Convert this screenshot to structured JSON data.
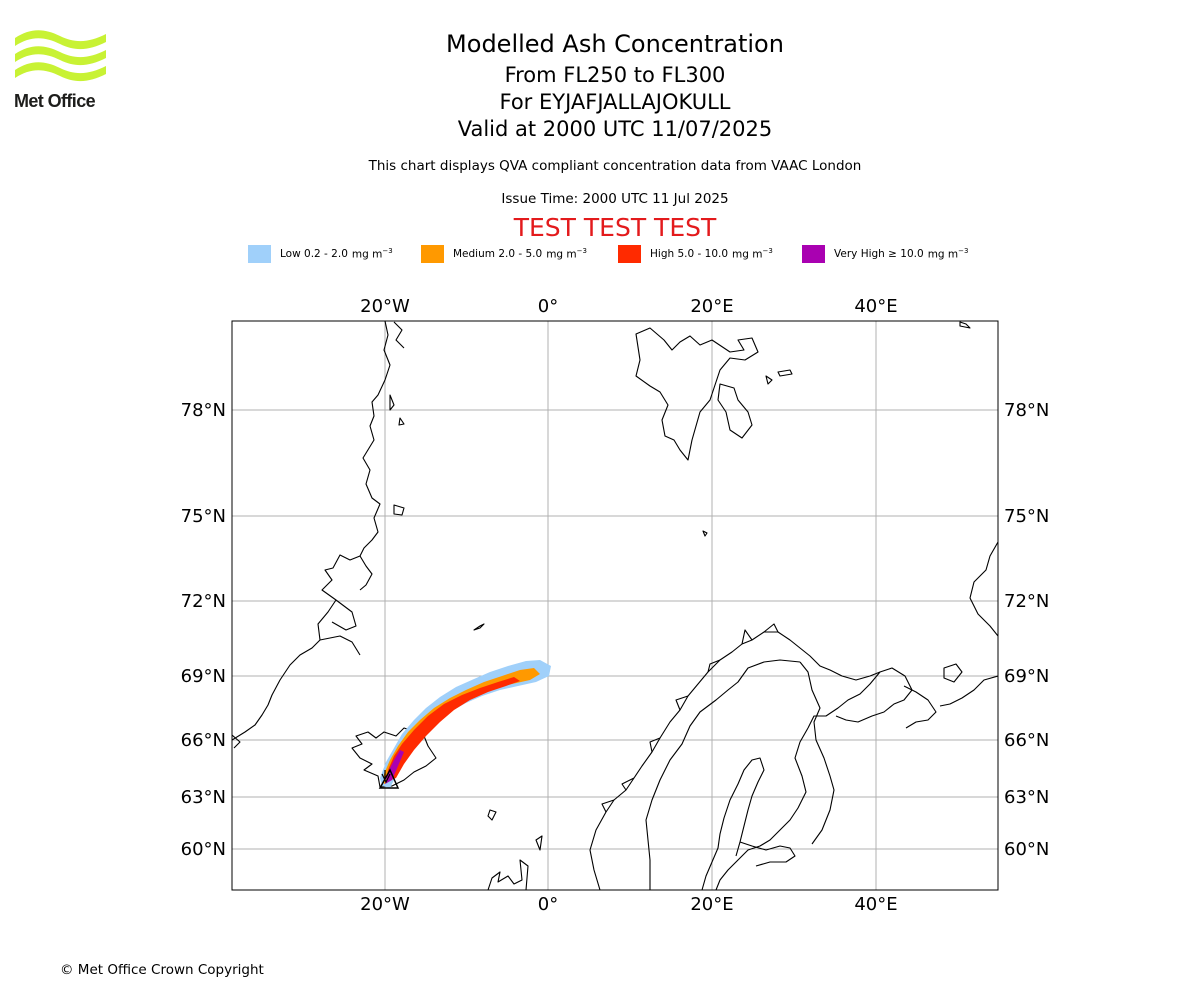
{
  "logo": {
    "text": "Met Office"
  },
  "header": {
    "title": "Modelled Ash Concentration",
    "levels": "From FL250 to FL300",
    "volcano": "For EYJAFJALLAJOKULL",
    "valid": "Valid at 2000 UTC 11/07/2025",
    "subtitle": "This chart displays QVA compliant concentration data from VAAC London",
    "issue_time": "Issue Time: 2000 UTC 11 Jul 2025",
    "test_banner": "TEST TEST TEST"
  },
  "legend": [
    {
      "label": "Low 0.2 - 2.0",
      "unit": "mg m",
      "exp": "−3",
      "color": "#a0d0fa"
    },
    {
      "label": "Medium 2.0 - 5.0",
      "unit": "mg m",
      "exp": "−3",
      "color": "#ff9900"
    },
    {
      "label": "High 5.0 - 10.0",
      "unit": "mg m",
      "exp": "−3",
      "color": "#ff2a00"
    },
    {
      "label": "Very High  ≥  10.0",
      "unit": "mg m",
      "exp": "−3",
      "color": "#a901b1"
    }
  ],
  "map": {
    "lon_ticks_top": [
      "20°W",
      "0°",
      "20°E",
      "40°E"
    ],
    "lon_ticks_bottom": [
      "20°W",
      "0°",
      "20°E",
      "40°E"
    ],
    "lat_ticks_left": [
      "78°N",
      "75°N",
      "72°N",
      "69°N",
      "66°N",
      "63°N",
      "60°N"
    ],
    "lat_ticks_right": [
      "78°N",
      "75°N",
      "72°N",
      "69°N",
      "66°N",
      "63°N",
      "60°N"
    ],
    "volcano_marker_icon": "volcano-triangle-icon"
  },
  "footer": {
    "copyright": "© Met Office Crown Copyright"
  }
}
